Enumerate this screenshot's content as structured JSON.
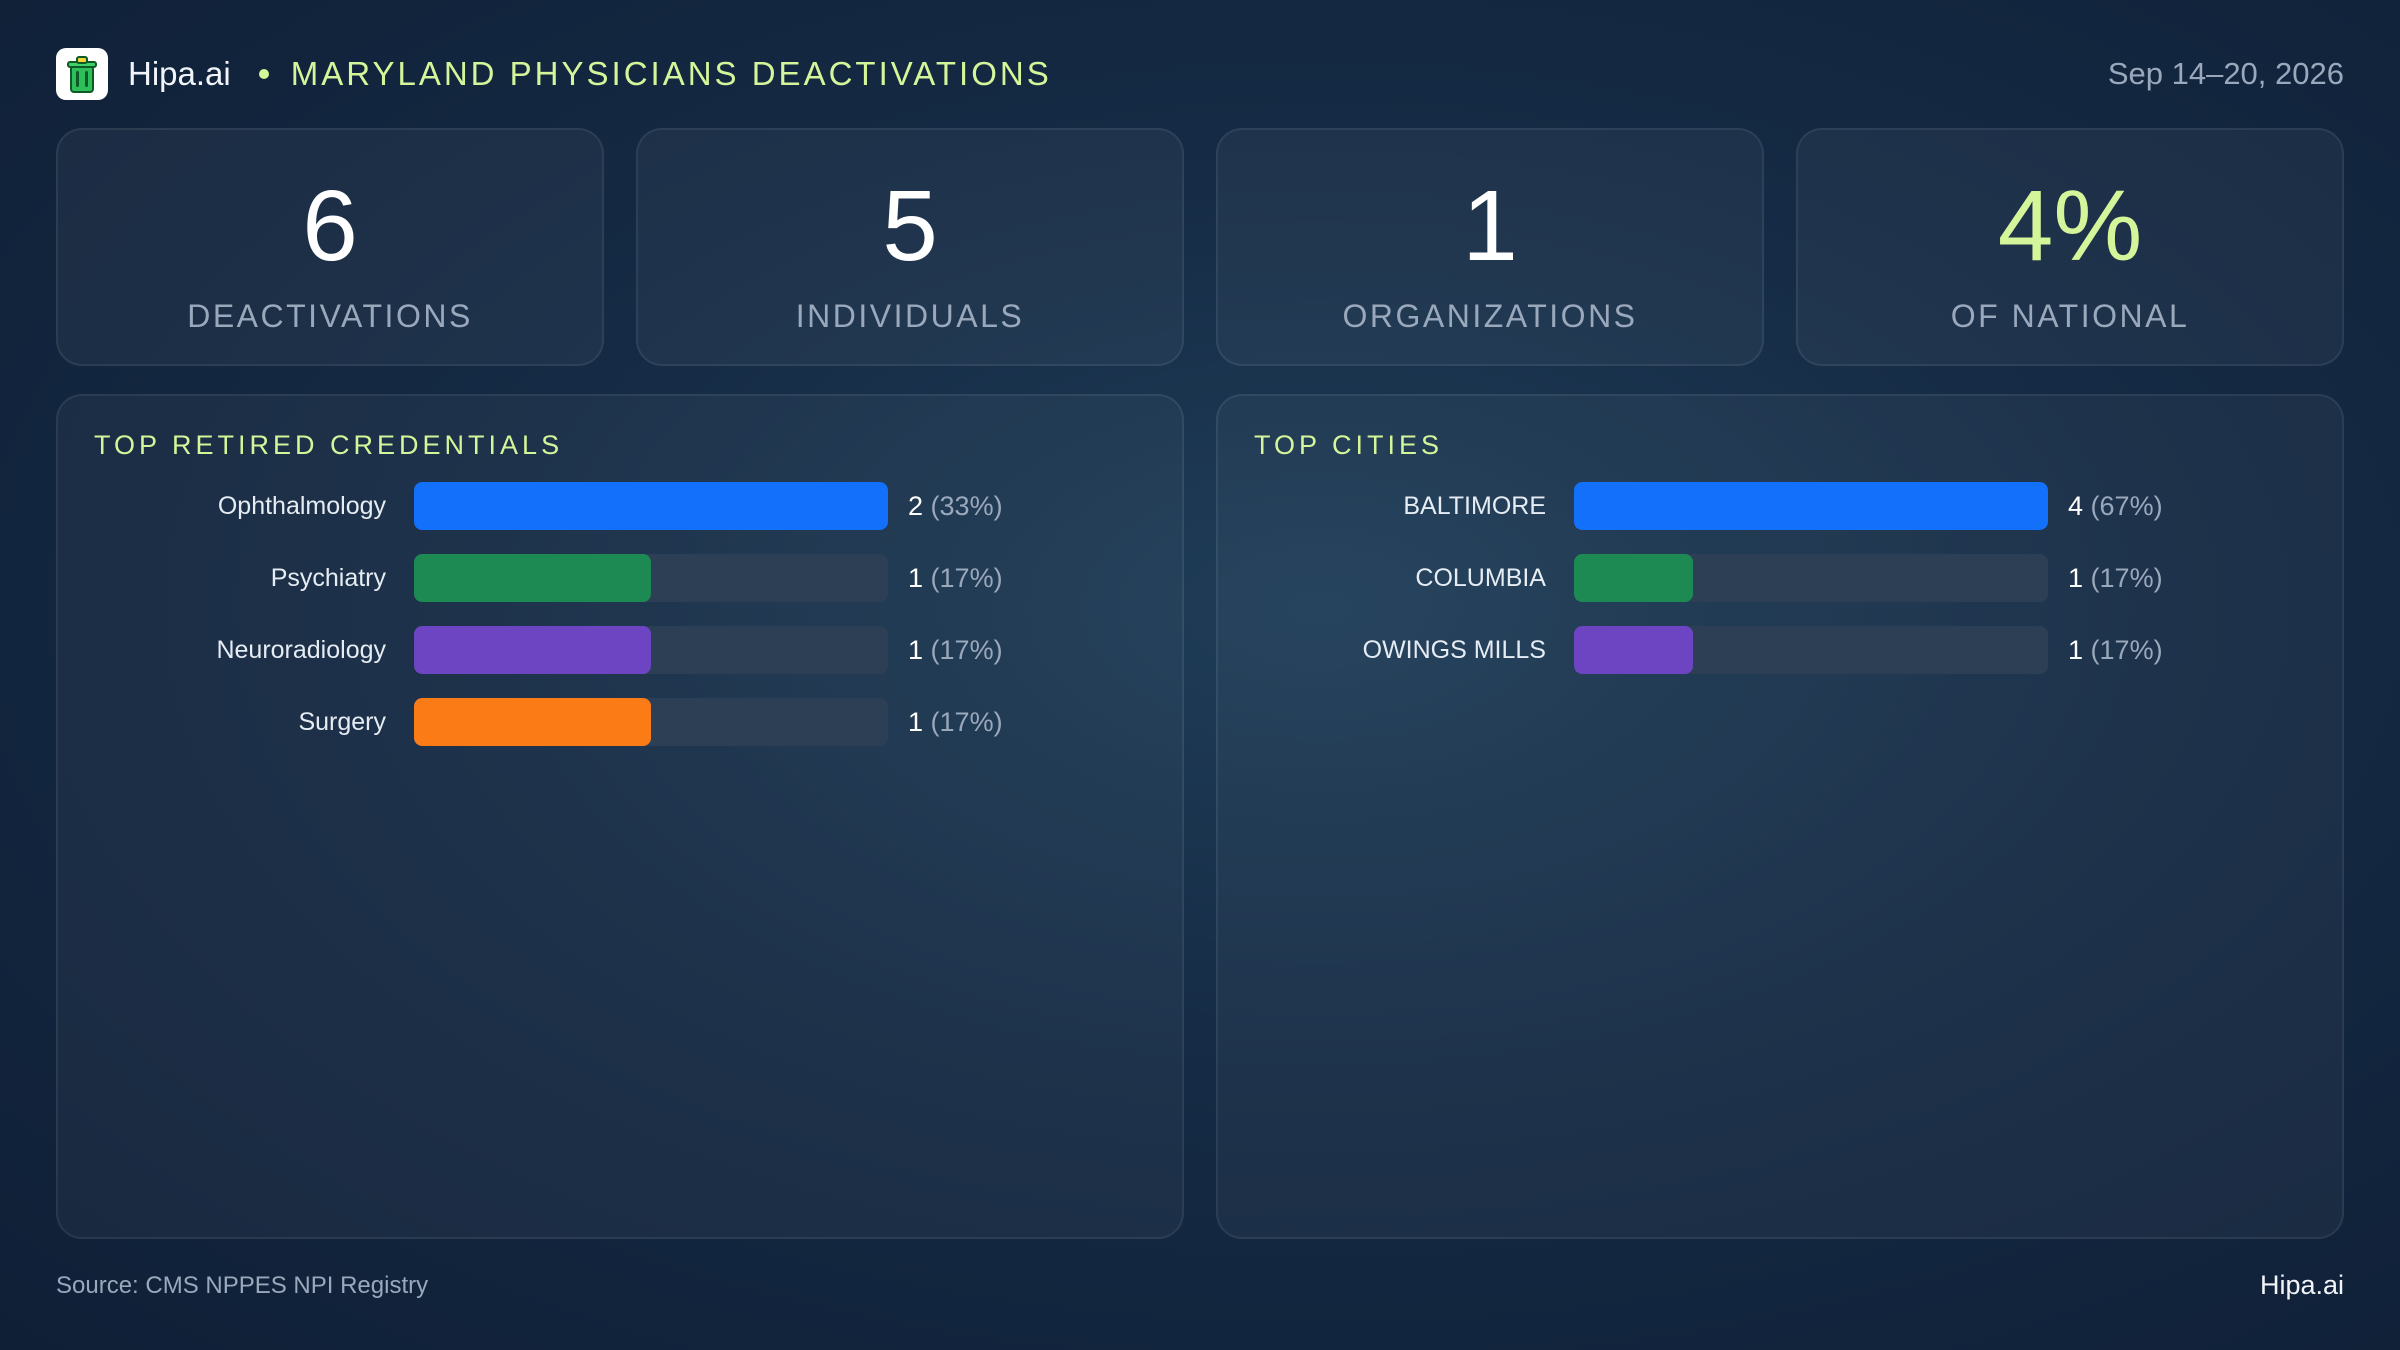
{
  "header": {
    "brand": "Hipa.ai",
    "title": "MARYLAND PHYSICIANS DEACTIVATIONS",
    "date": "Sep 14–20, 2026",
    "logo_icon": "trash-can-icon",
    "accent_color": "#d4f59a"
  },
  "kpis": [
    {
      "value": "6",
      "label": "DEACTIVATIONS"
    },
    {
      "value": "5",
      "label": "INDIVIDUALS"
    },
    {
      "value": "1",
      "label": "ORGANIZATIONS"
    },
    {
      "value": "4%",
      "label": "OF NATIONAL",
      "accent": true
    }
  ],
  "chart_data": [
    {
      "type": "bar",
      "orientation": "horizontal",
      "title": "TOP RETIRED CREDENTIALS",
      "categories": [
        "Ophthalmology",
        "Psychiatry",
        "Neuroradiology",
        "Surgery"
      ],
      "values": [
        2,
        1,
        1,
        1
      ],
      "value_labels": [
        "2",
        "1",
        "1",
        "1"
      ],
      "percent_labels": [
        "(33%)",
        "(17%)",
        "(17%)",
        "(17%)"
      ],
      "colors": [
        "#1270fb",
        "#1c8a52",
        "#6d45c2",
        "#fb7c17"
      ],
      "xlim": [
        0,
        2
      ]
    },
    {
      "type": "bar",
      "orientation": "horizontal",
      "title": "TOP CITIES",
      "categories": [
        "BALTIMORE",
        "COLUMBIA",
        "OWINGS MILLS"
      ],
      "values": [
        4,
        1,
        1
      ],
      "value_labels": [
        "4",
        "1",
        "1"
      ],
      "percent_labels": [
        "(67%)",
        "(17%)",
        "(17%)"
      ],
      "colors": [
        "#1270fb",
        "#1c8a52",
        "#6d45c2"
      ],
      "xlim": [
        0,
        4
      ]
    }
  ],
  "footer": {
    "source": "Source: CMS NPPES NPI Registry",
    "brand": "Hipa.ai"
  }
}
